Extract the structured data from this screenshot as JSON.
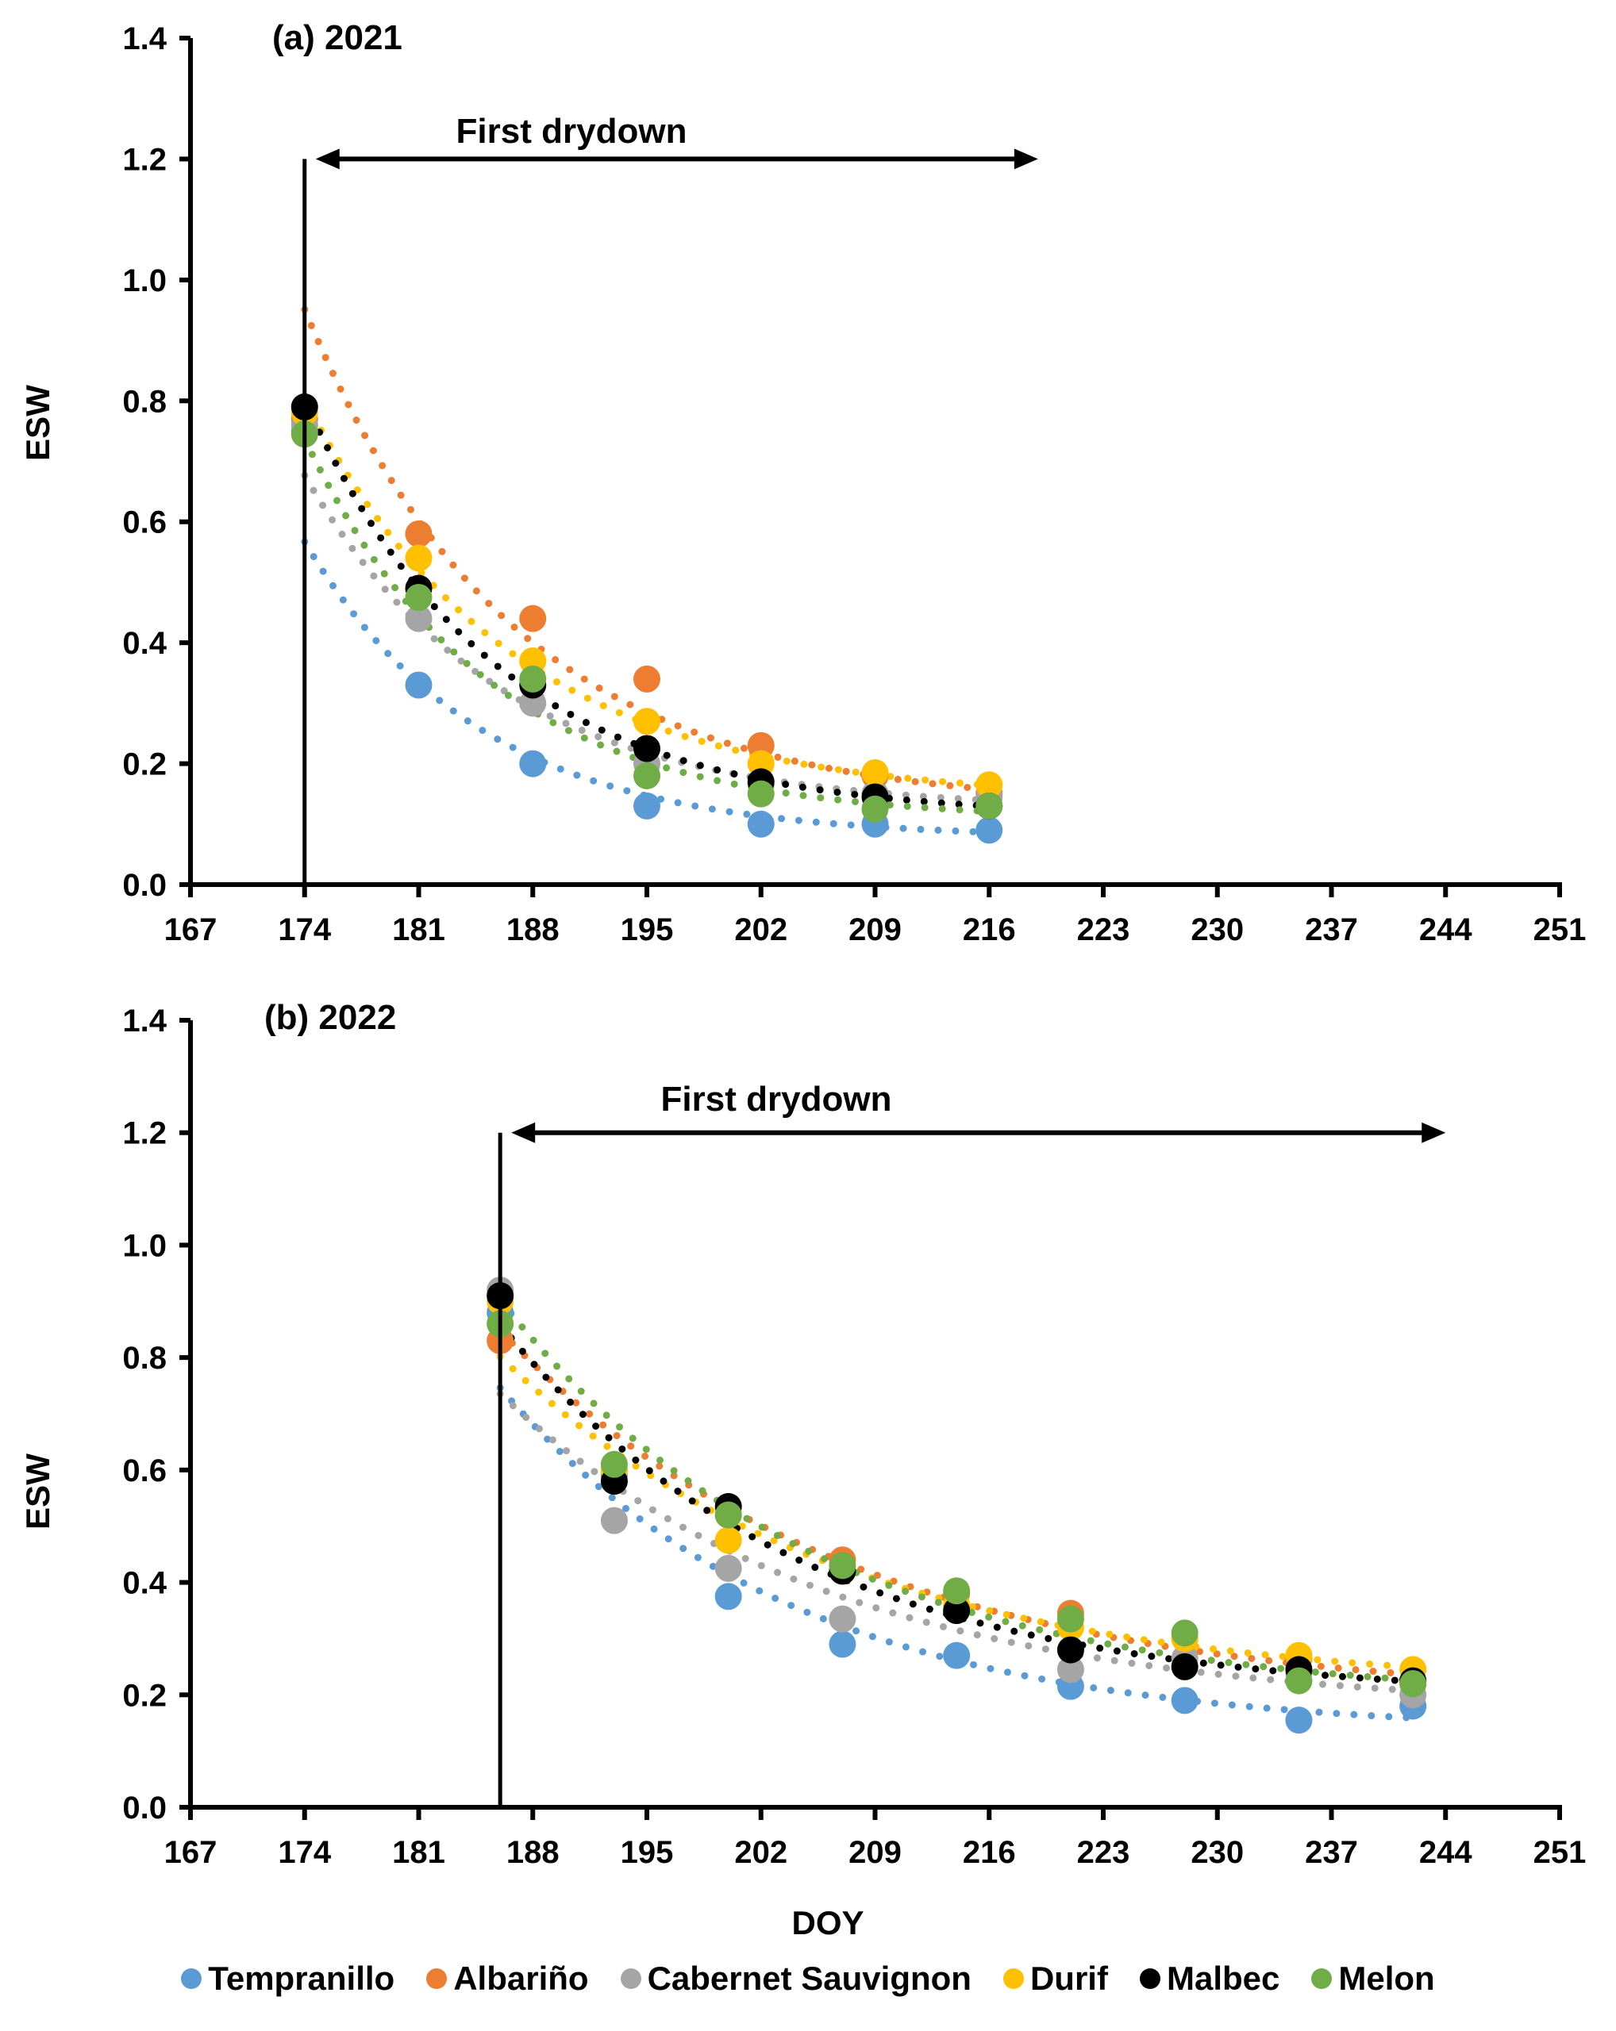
{
  "chart_data": {
    "type": "scatter",
    "shared_xlabel": "DOY",
    "legend_position": "bottom",
    "series_styles": [
      {
        "name": "Tempranillo",
        "color": "#5B9BD5"
      },
      {
        "name": "Albariño",
        "color": "#ED7D31"
      },
      {
        "name": "Cabernet Sauvignon",
        "color": "#A5A5A5"
      },
      {
        "name": "Durif",
        "color": "#FFC000"
      },
      {
        "name": "Malbec",
        "color": "#000000"
      },
      {
        "name": "Melon",
        "color": "#70AD47"
      }
    ],
    "panels": [
      {
        "title": "(a) 2021",
        "xlabel": "DOY",
        "ylabel": "ESW",
        "xlim": [
          167,
          251
        ],
        "ylim": [
          0,
          1.4
        ],
        "xticks": [
          167,
          174,
          181,
          188,
          195,
          202,
          209,
          216,
          223,
          230,
          237,
          244,
          251
        ],
        "yticks": [
          "0.0",
          "0.2",
          "0.4",
          "0.6",
          "0.8",
          "1.0",
          "1.2",
          "1.4"
        ],
        "trendline": "dotted exponential fit per series",
        "annotation": {
          "text": "First drydown",
          "start_doy": 174,
          "end_doy": 219,
          "marker_line_doy": 174,
          "marker_line_top": 1.2
        },
        "x": [
          174,
          181,
          188,
          195,
          202,
          209,
          216
        ],
        "series": [
          {
            "name": "Tempranillo",
            "values": [
              0.75,
              0.33,
              0.2,
              0.13,
              0.1,
              0.1,
              0.09
            ]
          },
          {
            "name": "Albariño",
            "values": [
              0.77,
              0.58,
              0.44,
              0.34,
              0.23,
              0.18,
              0.15
            ]
          },
          {
            "name": "Cabernet Sauvignon",
            "values": [
              0.76,
              0.44,
              0.3,
              0.2,
              0.165,
              0.15,
              0.145
            ]
          },
          {
            "name": "Durif",
            "values": [
              0.78,
              0.54,
              0.37,
              0.27,
              0.2,
              0.185,
              0.165
            ]
          },
          {
            "name": "Malbec",
            "values": [
              0.79,
              0.49,
              0.33,
              0.225,
              0.17,
              0.145,
              0.13
            ]
          },
          {
            "name": "Melon",
            "values": [
              0.745,
              0.475,
              0.34,
              0.18,
              0.15,
              0.125,
              0.13
            ]
          }
        ]
      },
      {
        "title": "(b) 2022",
        "xlabel": "DOY",
        "ylabel": "ESW",
        "xlim": [
          167,
          251
        ],
        "ylim": [
          0,
          1.4
        ],
        "xticks": [
          167,
          174,
          181,
          188,
          195,
          202,
          209,
          216,
          223,
          230,
          237,
          244,
          251
        ],
        "yticks": [
          "0.0",
          "0.2",
          "0.4",
          "0.6",
          "0.8",
          "1.0",
          "1.2",
          "1.4"
        ],
        "trendline": "dotted exponential fit per series",
        "annotation": {
          "text": "First drydown",
          "start_doy": 186,
          "end_doy": 244,
          "marker_line_doy": 186,
          "marker_line_top": 1.2
        },
        "x": [
          186,
          193,
          200,
          207,
          214,
          221,
          228,
          235,
          242
        ],
        "series": [
          {
            "name": "Tempranillo",
            "values": [
              0.88,
              0.59,
              0.375,
              0.29,
              0.27,
              0.215,
              0.19,
              0.155,
              0.18
            ]
          },
          {
            "name": "Albariño",
            "values": [
              0.83,
              0.6,
              0.52,
              0.44,
              0.38,
              0.345,
              0.3,
              0.265,
              0.22
            ]
          },
          {
            "name": "Cabernet Sauvignon",
            "values": [
              0.92,
              0.51,
              0.425,
              0.335,
              0.35,
              0.245,
              0.265,
              0.24,
              0.2
            ]
          },
          {
            "name": "Durif",
            "values": [
              0.9,
              0.6,
              0.475,
              0.42,
              0.36,
              0.32,
              0.3,
              0.27,
              0.245
            ]
          },
          {
            "name": "Malbec",
            "values": [
              0.91,
              0.58,
              0.535,
              0.42,
              0.35,
              0.28,
              0.25,
              0.245,
              0.225
            ]
          },
          {
            "name": "Melon",
            "values": [
              0.86,
              0.61,
              0.52,
              0.43,
              0.385,
              0.335,
              0.31,
              0.225,
              0.22
            ]
          }
        ]
      }
    ]
  }
}
